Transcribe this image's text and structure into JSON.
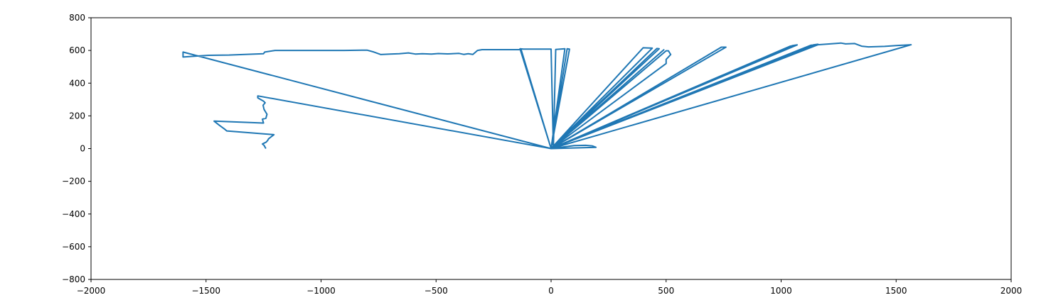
{
  "chart_data": {
    "type": "line",
    "title": "",
    "xlabel": "",
    "ylabel": "",
    "xlim": [
      -2000,
      2000
    ],
    "ylim": [
      -800,
      800
    ],
    "grid": false,
    "legend": "none",
    "series_color": "#1f77b4",
    "x_ticks": [
      -2000,
      -1500,
      -1000,
      -500,
      0,
      500,
      1000,
      1500,
      2000
    ],
    "y_ticks": [
      -800,
      -600,
      -400,
      -200,
      0,
      200,
      400,
      600,
      800
    ],
    "x_tick_labels": [
      "−2000",
      "−1500",
      "−1000",
      "−500",
      "0",
      "500",
      "1000",
      "1500",
      "2000"
    ],
    "y_tick_labels": [
      "−800",
      "−600",
      "−400",
      "−200",
      "0",
      "200",
      "400",
      "600",
      "800"
    ],
    "series": [
      {
        "x": [
          -1240,
          -1248,
          -1255,
          -1238,
          -1232,
          -1228,
          -1205,
          -1410,
          -1420,
          -1440,
          -1465,
          -1250,
          -1255,
          -1240,
          -1235,
          -1248,
          -1252,
          -1243,
          -1250,
          -1275,
          -1275,
          0,
          -1600,
          -1600,
          -1550,
          -1490,
          -1400,
          -1250,
          -1245,
          -1200,
          -1100,
          -1000,
          -900,
          -800,
          -770,
          -740,
          -700,
          -660,
          -620,
          -590,
          -560,
          -520,
          -490,
          -450,
          -400,
          -380,
          -360,
          -340,
          -320,
          -300,
          -200,
          -150,
          -130,
          0,
          -135,
          -120,
          -100,
          -50,
          0,
          10,
          20,
          40,
          60,
          0,
          70,
          80,
          0,
          400,
          440,
          0,
          460,
          470,
          0,
          490,
          480,
          0,
          500,
          510,
          520,
          500,
          500,
          0,
          740,
          760,
          0,
          1040,
          1060,
          0,
          1050,
          1070,
          0,
          1140,
          1160,
          0,
          1130,
          1150,
          0,
          1160,
          1260,
          1280,
          1320,
          1350,
          1380,
          1450,
          1500,
          1565,
          0,
          100,
          150,
          180,
          195,
          0
        ],
        "y": [
          0,
          20,
          28,
          40,
          50,
          60,
          85,
          108,
          120,
          140,
          168,
          156,
          180,
          185,
          210,
          240,
          265,
          280,
          290,
          310,
          322,
          0,
          590,
          560,
          565,
          570,
          572,
          580,
          590,
          600,
          600,
          600,
          600,
          602,
          590,
          575,
          578,
          580,
          585,
          578,
          580,
          578,
          581,
          579,
          582,
          576,
          580,
          576,
          600,
          605,
          605,
          605,
          605,
          0,
          610,
          608,
          608,
          608,
          608,
          0,
          606,
          608,
          610,
          0,
          610,
          608,
          0,
          616,
          614,
          0,
          612,
          610,
          0,
          604,
          592,
          0,
          598,
          598,
          575,
          545,
          520,
          0,
          620,
          620,
          0,
          626,
          632,
          0,
          630,
          634,
          0,
          634,
          638,
          0,
          632,
          634,
          0,
          635,
          645,
          640,
          642,
          626,
          622,
          625,
          630,
          635,
          0,
          18,
          20,
          16,
          8,
          0
        ]
      }
    ]
  }
}
